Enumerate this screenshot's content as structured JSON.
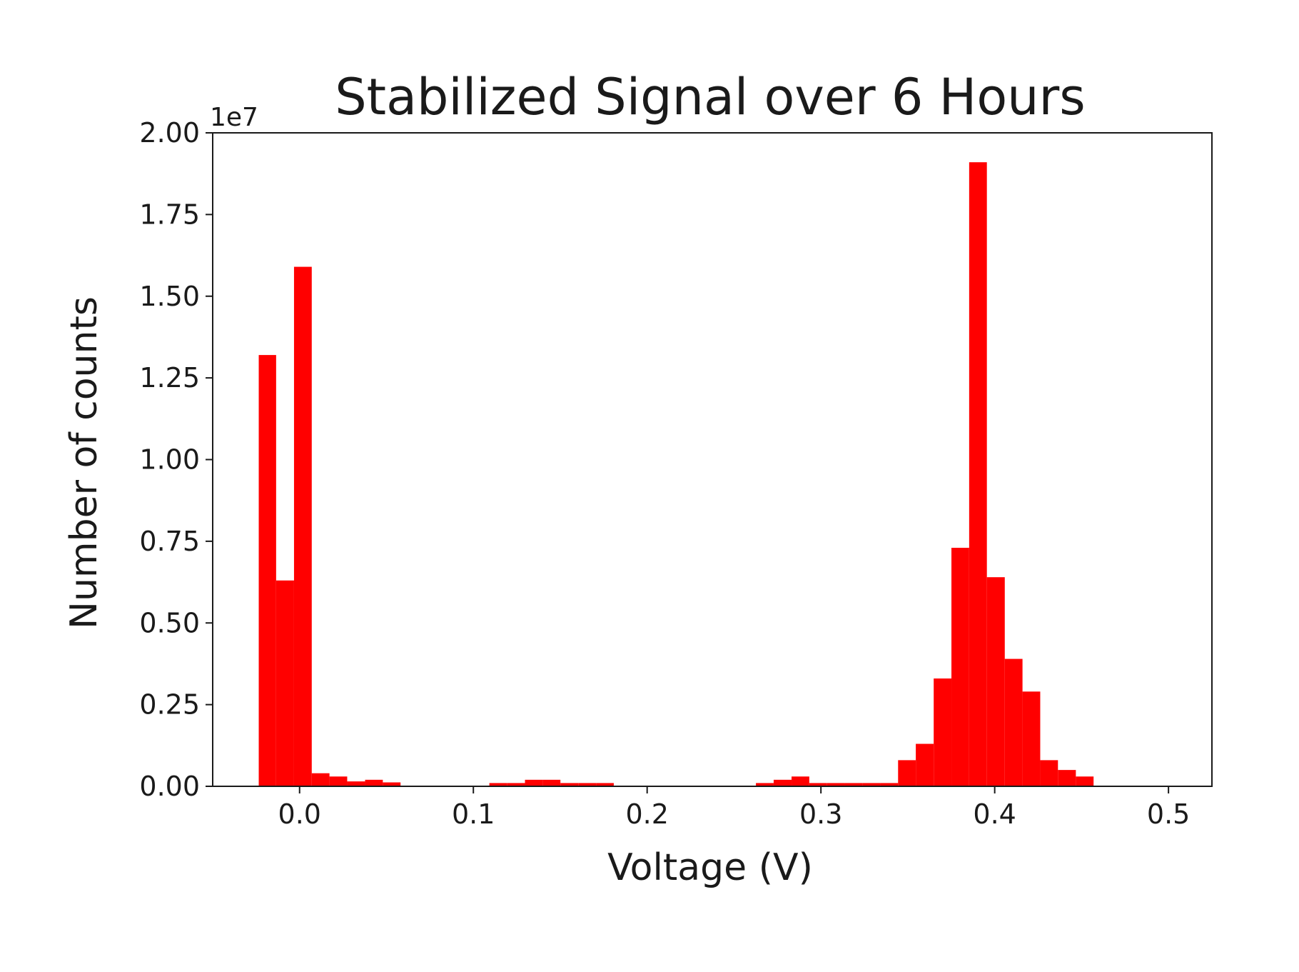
{
  "chart_data": {
    "type": "bar",
    "title": "Stabilized Signal over 6 Hours",
    "xlabel": "Voltage (V)",
    "ylabel": "Number of counts",
    "y_offset_label": "1e7",
    "xlim": [
      -0.05,
      0.525
    ],
    "ylim": [
      0,
      20000000
    ],
    "grid": false,
    "legend": "none",
    "bar_color": "#ff0000",
    "x_ticks": [
      {
        "value": 0.0,
        "label": "0.0"
      },
      {
        "value": 0.1,
        "label": "0.1"
      },
      {
        "value": 0.2,
        "label": "0.2"
      },
      {
        "value": 0.3,
        "label": "0.3"
      },
      {
        "value": 0.4,
        "label": "0.4"
      },
      {
        "value": 0.5,
        "label": "0.5"
      }
    ],
    "y_ticks": [
      {
        "value": 0,
        "label": "0.00"
      },
      {
        "value": 2500000,
        "label": "0.25"
      },
      {
        "value": 5000000,
        "label": "0.50"
      },
      {
        "value": 7500000,
        "label": "0.75"
      },
      {
        "value": 10000000,
        "label": "1.00"
      },
      {
        "value": 12500000,
        "label": "1.25"
      },
      {
        "value": 15000000,
        "label": "1.50"
      },
      {
        "value": 17500000,
        "label": "1.75"
      },
      {
        "value": 20000000,
        "label": "2.00"
      }
    ],
    "bin_edges": [
      -0.0235,
      -0.0135,
      -0.0032,
      0.007,
      0.0172,
      0.0274,
      0.0377,
      0.0479,
      0.0581,
      0.0683,
      0.0786,
      0.0888,
      0.099,
      0.1092,
      0.1195,
      0.1297,
      0.1399,
      0.1501,
      0.1604,
      0.1706,
      0.1808,
      0.191,
      0.2013,
      0.2115,
      0.2217,
      0.2319,
      0.2422,
      0.2524,
      0.2626,
      0.2728,
      0.2831,
      0.2933,
      0.3035,
      0.3137,
      0.324,
      0.3342,
      0.3444,
      0.3546,
      0.3649,
      0.3751,
      0.3853,
      0.3955,
      0.4058,
      0.416,
      0.4262,
      0.4364,
      0.4467,
      0.4569,
      0.4647
    ],
    "counts": [
      13200000,
      6300000,
      15900000,
      400000,
      300000,
      150000,
      200000,
      120000,
      0,
      0,
      0,
      0,
      0,
      100000,
      100000,
      200000,
      200000,
      100000,
      100000,
      100000,
      0,
      0,
      0,
      0,
      0,
      0,
      0,
      0,
      100000,
      200000,
      300000,
      100000,
      100000,
      100000,
      100000,
      100000,
      800000,
      1300000,
      3300000,
      7300000,
      19100000,
      6400000,
      3900000,
      2900000,
      800000,
      500000,
      300000,
      0
    ]
  }
}
